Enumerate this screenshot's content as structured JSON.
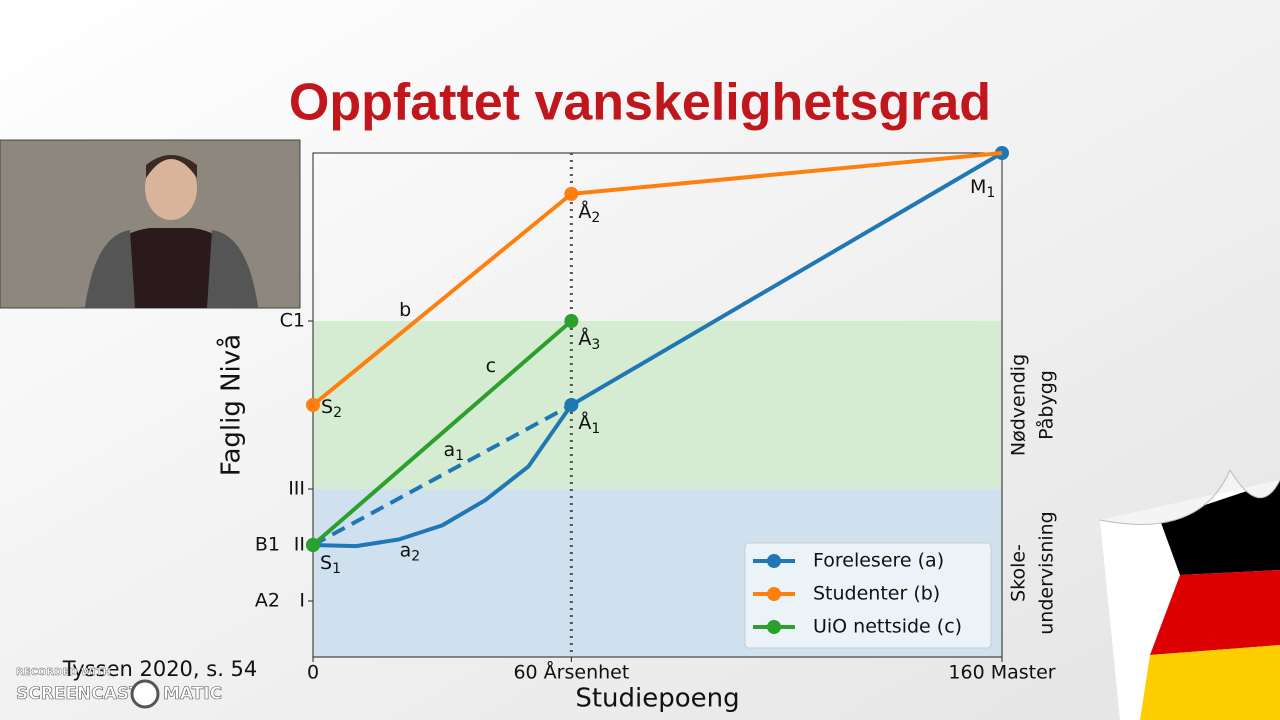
{
  "slide": {
    "title": "Oppfattet vanskelighetsgrad",
    "citation": "Tyssen 2020, s. 54"
  },
  "watermark": {
    "line1": "RECORDED WITH",
    "line2": "SCREENCAST",
    "line3": "MATIC"
  },
  "chart_data": {
    "type": "line",
    "xlabel": "Studiepoeng",
    "ylabel": "Faglig Nivå",
    "xlim": [
      0,
      160
    ],
    "ylim": [
      0,
      9
    ],
    "xticks": [
      0,
      {
        "value": 60,
        "label": "60 Årsenhet"
      },
      {
        "value": 160,
        "label": "160 Master"
      }
    ],
    "yticks": [
      {
        "value": 1,
        "label": "I"
      },
      {
        "value": 2,
        "label": "II"
      },
      {
        "value": 3,
        "label": "III"
      },
      {
        "value": 6,
        "label": "C1"
      }
    ],
    "level_ticks": [
      {
        "value": 1,
        "label": "A2"
      },
      {
        "value": 2,
        "label": "B1"
      }
    ],
    "bands": [
      {
        "from": 0,
        "to": 3,
        "color": "#cfe0ee",
        "label": [
          "Skole-",
          "undervisning"
        ]
      },
      {
        "from": 3,
        "to": 6,
        "color": "#d6ecd2",
        "label": [
          "Nødvendig",
          "Påbygg"
        ]
      }
    ],
    "vline": 60,
    "series": [
      {
        "name": "Forelesere (a)",
        "color": "#1f77b4",
        "x": [
          0,
          10,
          20,
          30,
          40,
          50,
          60,
          160
        ],
        "values": [
          2,
          1.98,
          2.1,
          2.35,
          2.8,
          3.4,
          4.5,
          9
        ],
        "markers": [
          true,
          false,
          false,
          false,
          false,
          false,
          true,
          true
        ]
      },
      {
        "name": "Studenter (b)",
        "color": "#ff7f0e",
        "x": [
          0,
          60,
          160
        ],
        "values": [
          4.5,
          8.27,
          9
        ],
        "markers": [
          true,
          true,
          false
        ]
      },
      {
        "name": "UiO nettside (c)",
        "color": "#2ca02c",
        "x": [
          0,
          60
        ],
        "values": [
          2,
          6
        ],
        "markers": [
          true,
          true
        ]
      }
    ],
    "dashed_lines": [
      {
        "color": "#1f77b4",
        "x": [
          0,
          60
        ],
        "values": [
          2,
          4.5
        ]
      }
    ],
    "point_labels": [
      {
        "x": 0,
        "y": 2,
        "text": "S",
        "sub": "1",
        "side": "below-right"
      },
      {
        "x": 0,
        "y": 4.5,
        "text": "S",
        "sub": "2",
        "side": "right"
      },
      {
        "x": 60,
        "y": 4.5,
        "text": "Å",
        "sub": "1",
        "side": "below-right"
      },
      {
        "x": 60,
        "y": 8.27,
        "text": "Å",
        "sub": "2",
        "side": "below-right"
      },
      {
        "x": 60,
        "y": 6,
        "text": "Å",
        "sub": "3",
        "side": "below-right"
      },
      {
        "x": 160,
        "y": 9,
        "text": "M",
        "sub": "1",
        "side": "below-left"
      }
    ],
    "line_labels": [
      {
        "x": 21.4,
        "y": 6.2,
        "text": "b"
      },
      {
        "x": 41.3,
        "y": 5.2,
        "text": "c"
      },
      {
        "x": 32.7,
        "y": 3.7,
        "text": "a",
        "sub": "1"
      },
      {
        "x": 22.5,
        "y": 1.9,
        "text": "a",
        "sub": "2"
      }
    ],
    "legend": "lower right"
  }
}
